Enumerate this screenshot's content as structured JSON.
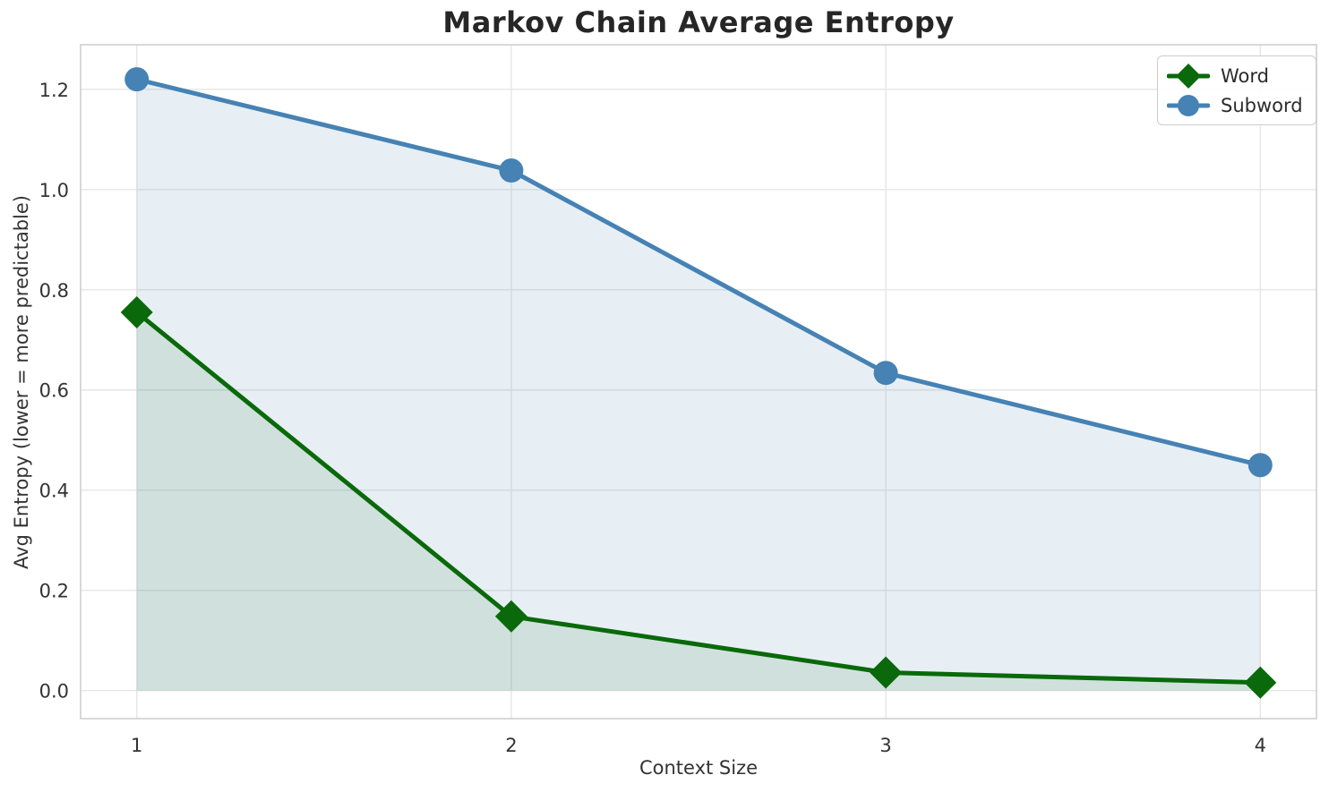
{
  "chart_data": {
    "type": "line",
    "title": "Markov Chain Average Entropy",
    "xlabel": "Context Size",
    "ylabel": "Avg Entropy (lower = more predictable)",
    "x": [
      1,
      2,
      3,
      4
    ],
    "series": [
      {
        "name": "Word",
        "values": [
          0.755,
          0.148,
          0.036,
          0.016
        ],
        "color": "#0a690a",
        "marker": "diamond",
        "fill_to_zero": true,
        "fill_opacity": 0.1
      },
      {
        "name": "Subword",
        "values": [
          1.22,
          1.038,
          0.634,
          0.45
        ],
        "color": "#4682b4",
        "marker": "circle",
        "fill_to_zero": true,
        "fill_opacity": 0.13
      }
    ],
    "xticks": [
      1,
      2,
      3,
      4
    ],
    "xtick_labels": [
      "1",
      "2",
      "3",
      "4"
    ],
    "yticks": [
      0.0,
      0.2,
      0.4,
      0.6,
      0.8,
      1.0,
      1.2
    ],
    "ytick_labels": [
      "0.0",
      "0.2",
      "0.4",
      "0.6",
      "0.8",
      "1.0",
      "1.2"
    ],
    "xlim": [
      0.85,
      4.15
    ],
    "ylim": [
      -0.056,
      1.289
    ],
    "grid": true,
    "legend_position": "top-right",
    "legend": [
      "Word",
      "Subword"
    ]
  },
  "colors": {
    "background": "#ffffff",
    "grid": "#e6e6e6",
    "spine": "#cccccc",
    "tick_text": "#333333",
    "title_text": "#262626",
    "word_series": "#0a690a",
    "subword_series": "#4682b4"
  }
}
